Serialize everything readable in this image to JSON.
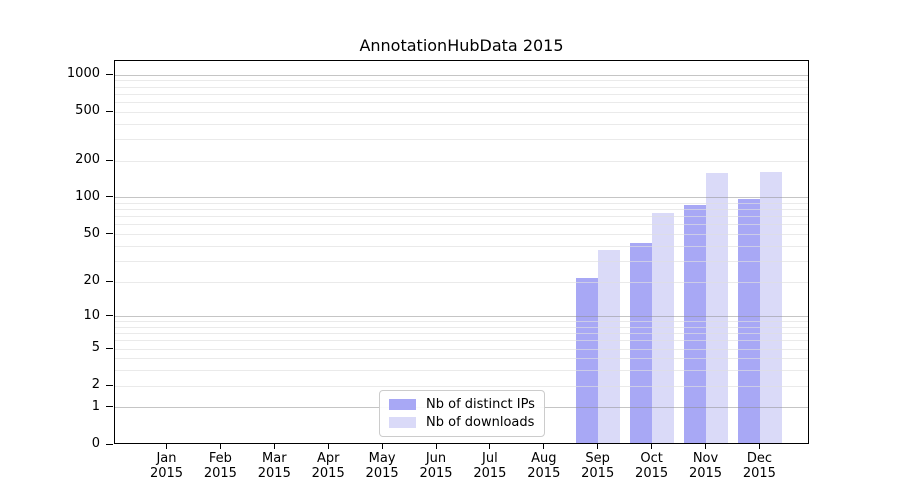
{
  "chart_data": {
    "type": "bar",
    "title": "AnnotationHubData 2015",
    "x_categories": [
      "Jan",
      "Feb",
      "Mar",
      "Apr",
      "May",
      "Jun",
      "Jul",
      "Aug",
      "Sep",
      "Oct",
      "Nov",
      "Dec"
    ],
    "x_year": "2015",
    "series": [
      {
        "name": "Nb of distinct IPs",
        "color": "#a8a8f5",
        "values": [
          0,
          0,
          0,
          0,
          0,
          0,
          0,
          0,
          21,
          41,
          85,
          95
        ]
      },
      {
        "name": "Nb of downloads",
        "color": "#dadaf8",
        "values": [
          0,
          0,
          0,
          0,
          0,
          0,
          0,
          0,
          36,
          72,
          154,
          156
        ]
      }
    ],
    "yscale": "log1p",
    "yticks": [
      0,
      1,
      2,
      5,
      10,
      20,
      50,
      100,
      200,
      500,
      1000
    ],
    "ylim": [
      0,
      1300
    ],
    "grid": "horizontal major+minor (log decades)",
    "legend_position": "inside-bottom-center"
  },
  "colors": {
    "grid_major": "#c8c8c8",
    "grid_minor": "#ececec",
    "spine": "#000000",
    "background": "#ffffff"
  }
}
